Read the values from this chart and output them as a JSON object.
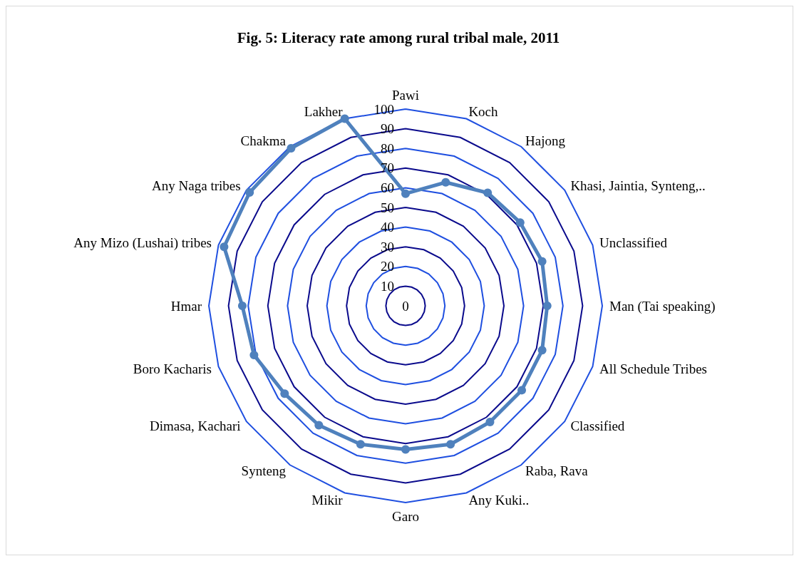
{
  "chart_data": {
    "type": "radar",
    "title": "Fig. 5: Literacy rate among rural tribal male, 2011",
    "categories": [
      "Pawi",
      "Koch",
      "Hajong",
      "Khasi, Jaintia, Synteng,..",
      "Unclassified",
      "Man (Tai speaking)",
      "All Schedule Tribes",
      "Classified",
      "Raba, Rava",
      "Any Kuki..",
      "Garo",
      "Mikir",
      "Synteng",
      "Dimasa, Kachari",
      "Boro Kacharis",
      "Hmar",
      "Any Mizo (Lushai) tribes",
      "Any Naga tribes",
      "Chakma",
      "Lakher"
    ],
    "series": [
      {
        "color": "#4f81bd",
        "values": [
          57,
          66,
          71,
          72,
          73,
          72,
          73,
          73,
          73,
          74,
          73,
          74,
          75,
          76,
          81,
          83,
          97,
          98,
          99,
          100
        ]
      }
    ],
    "ylim": [
      0,
      100
    ],
    "yticks": [
      0,
      10,
      20,
      30,
      40,
      50,
      60,
      70,
      80,
      90,
      100
    ],
    "grid": true,
    "marker": "circle"
  }
}
